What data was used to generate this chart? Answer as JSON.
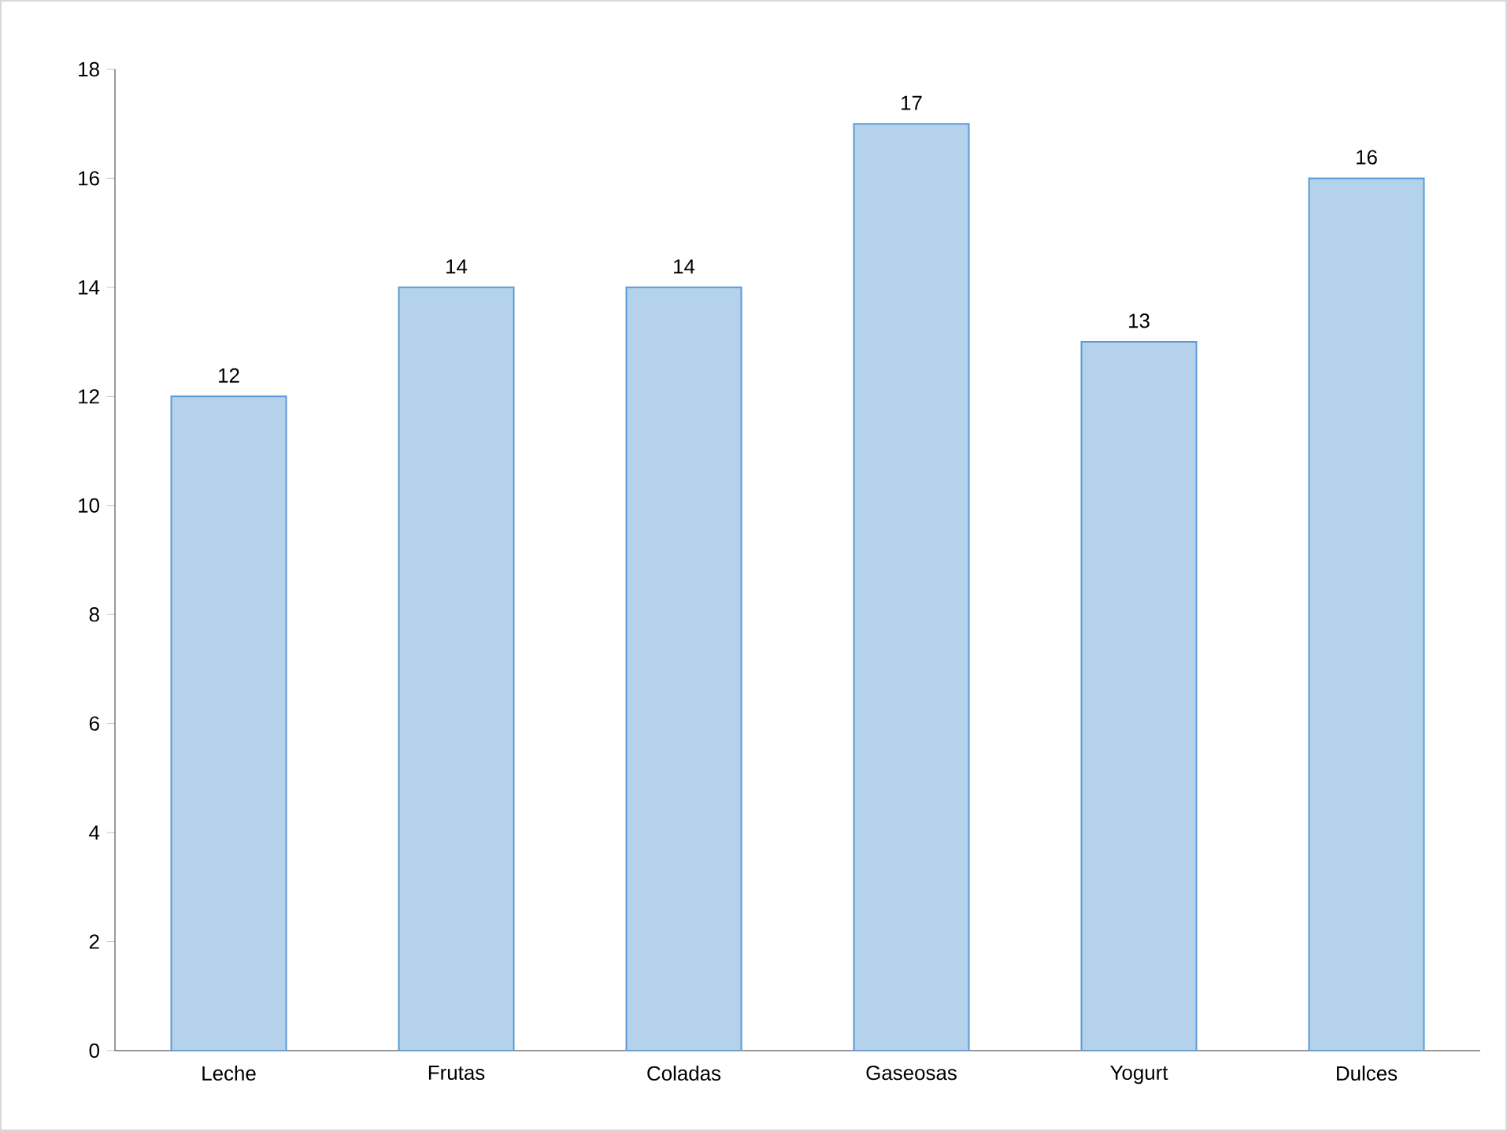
{
  "chart_data": {
    "type": "bar",
    "categories": [
      "Leche",
      "Frutas",
      "Coladas",
      "Gaseosas",
      "Yogurt",
      "Dulces"
    ],
    "values": [
      12,
      14,
      14,
      17,
      13,
      16
    ],
    "color": "#5b9bd5",
    "ylim": [
      0,
      18
    ],
    "yticks": [
      0,
      2,
      4,
      6,
      8,
      10,
      12,
      14,
      16,
      18
    ],
    "data_labels": true
  }
}
